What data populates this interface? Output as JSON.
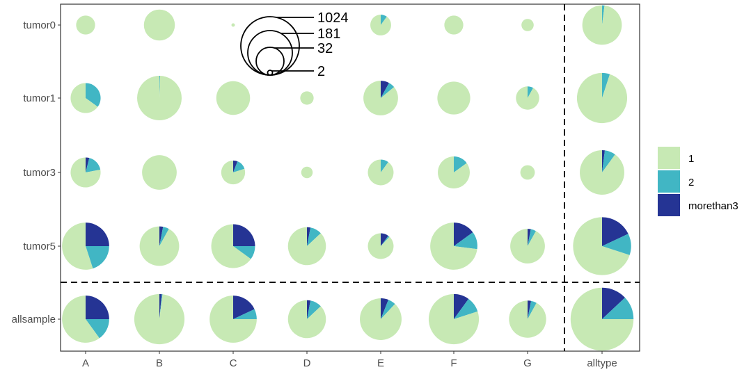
{
  "chart_data": {
    "type": "scatter",
    "subtype": "pie-scatter",
    "title": "",
    "xlabel": "",
    "ylabel": "",
    "x_categories": [
      "A",
      "B",
      "C",
      "D",
      "E",
      "F",
      "G",
      "alltype"
    ],
    "y_categories": [
      "tumor0",
      "tumor1",
      "tumor3",
      "tumor5",
      "allsample"
    ],
    "legend": {
      "placement": "right",
      "entries": [
        {
          "label": "1",
          "color": "#c7e9b4"
        },
        {
          "label": "2",
          "color": "#41b6c4"
        },
        {
          "label": "morethan3",
          "color": "#253494"
        }
      ]
    },
    "size_legend": {
      "values": [
        1024,
        181,
        32,
        2
      ],
      "labels": [
        "1024",
        "181",
        "32",
        "2"
      ]
    },
    "separators": "dashed lines before 'alltype' column and before 'allsample' row",
    "grid": false,
    "points": [
      {
        "x": "A",
        "y": "tumor0",
        "size": 60,
        "fractions": [
          1,
          0,
          0
        ]
      },
      {
        "x": "B",
        "y": "tumor0",
        "size": 160,
        "fractions": [
          1,
          0,
          0
        ]
      },
      {
        "x": "C",
        "y": "tumor0",
        "size": 2,
        "fractions": [
          1,
          0,
          0
        ]
      },
      {
        "x": "E",
        "y": "tumor0",
        "size": 72,
        "fractions": [
          0.9,
          0.1,
          0
        ]
      },
      {
        "x": "F",
        "y": "tumor0",
        "size": 60,
        "fractions": [
          1,
          0,
          0
        ]
      },
      {
        "x": "G",
        "y": "tumor0",
        "size": 25,
        "fractions": [
          1,
          0,
          0
        ]
      },
      {
        "x": "alltype",
        "y": "tumor0",
        "size": 260,
        "fractions": [
          0.98,
          0.02,
          0
        ]
      },
      {
        "x": "A",
        "y": "tumor1",
        "size": 150,
        "fractions": [
          0.65,
          0.35,
          0
        ]
      },
      {
        "x": "B",
        "y": "tumor1",
        "size": 330,
        "fractions": [
          0.995,
          0.005,
          0
        ]
      },
      {
        "x": "C",
        "y": "tumor1",
        "size": 190,
        "fractions": [
          1,
          0,
          0
        ]
      },
      {
        "x": "D",
        "y": "tumor1",
        "size": 30,
        "fractions": [
          1,
          0,
          0
        ]
      },
      {
        "x": "E",
        "y": "tumor1",
        "size": 200,
        "fractions": [
          0.86,
          0.06,
          0.08
        ]
      },
      {
        "x": "F",
        "y": "tumor1",
        "size": 180,
        "fractions": [
          1,
          0,
          0
        ]
      },
      {
        "x": "G",
        "y": "tumor1",
        "size": 90,
        "fractions": [
          0.92,
          0.08,
          0
        ]
      },
      {
        "x": "alltype",
        "y": "tumor1",
        "size": 420,
        "fractions": [
          0.95,
          0.05,
          0
        ]
      },
      {
        "x": "A",
        "y": "tumor3",
        "size": 150,
        "fractions": [
          0.78,
          0.18,
          0.04
        ]
      },
      {
        "x": "B",
        "y": "tumor3",
        "size": 200,
        "fractions": [
          1,
          0,
          0
        ]
      },
      {
        "x": "C",
        "y": "tumor3",
        "size": 95,
        "fractions": [
          0.8,
          0.14,
          0.06
        ]
      },
      {
        "x": "D",
        "y": "tumor3",
        "size": 22,
        "fractions": [
          1,
          0,
          0
        ]
      },
      {
        "x": "E",
        "y": "tumor3",
        "size": 110,
        "fractions": [
          0.9,
          0.1,
          0
        ]
      },
      {
        "x": "F",
        "y": "tumor3",
        "size": 170,
        "fractions": [
          0.85,
          0.15,
          0
        ]
      },
      {
        "x": "G",
        "y": "tumor3",
        "size": 35,
        "fractions": [
          1,
          0,
          0
        ]
      },
      {
        "x": "alltype",
        "y": "tumor3",
        "size": 330,
        "fractions": [
          0.9,
          0.08,
          0.02
        ]
      },
      {
        "x": "A",
        "y": "tumor5",
        "size": 370,
        "fractions": [
          0.55,
          0.2,
          0.25
        ]
      },
      {
        "x": "B",
        "y": "tumor5",
        "size": 260,
        "fractions": [
          0.92,
          0.05,
          0.03
        ]
      },
      {
        "x": "C",
        "y": "tumor5",
        "size": 320,
        "fractions": [
          0.65,
          0.1,
          0.25
        ]
      },
      {
        "x": "D",
        "y": "tumor5",
        "size": 240,
        "fractions": [
          0.87,
          0.1,
          0.03
        ]
      },
      {
        "x": "E",
        "y": "tumor5",
        "size": 110,
        "fractions": [
          0.88,
          0.02,
          0.1
        ]
      },
      {
        "x": "F",
        "y": "tumor5",
        "size": 370,
        "fractions": [
          0.73,
          0.12,
          0.15
        ]
      },
      {
        "x": "G",
        "y": "tumor5",
        "size": 200,
        "fractions": [
          0.92,
          0.05,
          0.03
        ]
      },
      {
        "x": "alltype",
        "y": "tumor5",
        "size": 560,
        "fractions": [
          0.7,
          0.12,
          0.18
        ]
      },
      {
        "x": "A",
        "y": "allsample",
        "size": 370,
        "fractions": [
          0.6,
          0.15,
          0.25
        ]
      },
      {
        "x": "B",
        "y": "allsample",
        "size": 420,
        "fractions": [
          0.98,
          0.005,
          0.015
        ]
      },
      {
        "x": "C",
        "y": "allsample",
        "size": 370,
        "fractions": [
          0.75,
          0.07,
          0.18
        ]
      },
      {
        "x": "D",
        "y": "allsample",
        "size": 240,
        "fractions": [
          0.87,
          0.1,
          0.03
        ]
      },
      {
        "x": "E",
        "y": "allsample",
        "size": 290,
        "fractions": [
          0.88,
          0.06,
          0.06
        ]
      },
      {
        "x": "F",
        "y": "allsample",
        "size": 420,
        "fractions": [
          0.8,
          0.1,
          0.1
        ]
      },
      {
        "x": "G",
        "y": "allsample",
        "size": 230,
        "fractions": [
          0.92,
          0.05,
          0.03
        ]
      },
      {
        "x": "alltype",
        "y": "allsample",
        "size": 660,
        "fractions": [
          0.75,
          0.12,
          0.13
        ]
      }
    ]
  }
}
